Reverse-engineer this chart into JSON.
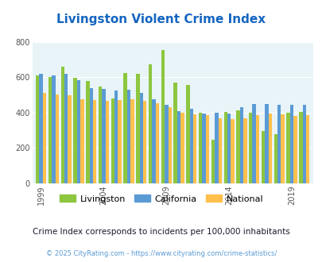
{
  "title": "Livingston Violent Crime Index",
  "years": [
    1999,
    2000,
    2001,
    2002,
    2003,
    2004,
    2005,
    2006,
    2007,
    2008,
    2009,
    2010,
    2011,
    2012,
    2013,
    2014,
    2015,
    2016,
    2017,
    2018,
    2019,
    2020
  ],
  "livingston": [
    610,
    600,
    660,
    595,
    580,
    548,
    480,
    625,
    620,
    675,
    755,
    570,
    555,
    400,
    245,
    405,
    415,
    400,
    295,
    280,
    400,
    405
  ],
  "california": [
    620,
    610,
    620,
    585,
    540,
    535,
    525,
    530,
    510,
    475,
    445,
    410,
    420,
    395,
    400,
    395,
    430,
    450,
    450,
    445,
    445,
    445
  ],
  "national": [
    510,
    505,
    500,
    475,
    470,
    465,
    470,
    475,
    465,
    455,
    430,
    400,
    390,
    385,
    370,
    365,
    370,
    385,
    395,
    390,
    380,
    385
  ],
  "bar_colors": {
    "livingston": "#8DC63F",
    "california": "#5B9BD5",
    "national": "#FFC04C"
  },
  "ylim": [
    0,
    800
  ],
  "yticks": [
    0,
    200,
    400,
    600,
    800
  ],
  "bg_color": "#E8F4F8",
  "fig_bg": "#FFFFFF",
  "title_color": "#1565C0",
  "subtitle": "Crime Index corresponds to incidents per 100,000 inhabitants",
  "subtitle_color": "#1a1a2e",
  "footer": "© 2025 CityRating.com - https://www.cityrating.com/crime-statistics/",
  "footer_color": "#5B9BD5",
  "xtick_labels": [
    "1999",
    "2004",
    "2009",
    "2014",
    "2019"
  ],
  "xtick_positions": [
    0,
    5,
    10,
    15,
    20
  ]
}
